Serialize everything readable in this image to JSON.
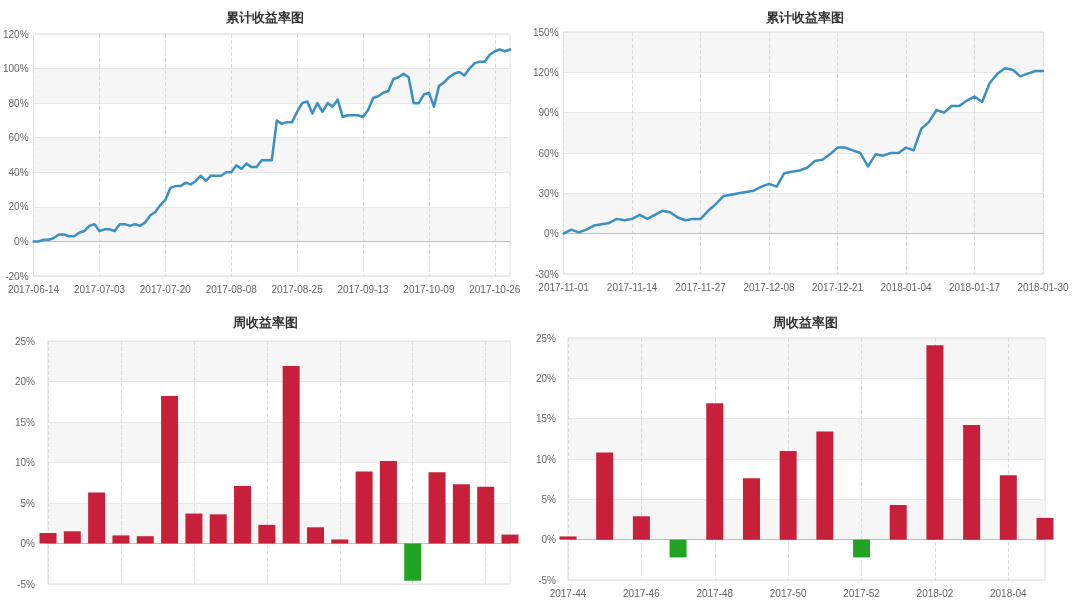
{
  "chart_data": [
    {
      "type": "line",
      "title": "累计收益率图",
      "categories": [
        "2017-06-14",
        null,
        null,
        null,
        null,
        null,
        null,
        null,
        null,
        null,
        null,
        null,
        null,
        "2017-07-03",
        null,
        null,
        null,
        null,
        null,
        null,
        null,
        null,
        null,
        null,
        null,
        null,
        "2017-07-20",
        null,
        null,
        null,
        null,
        null,
        null,
        null,
        null,
        null,
        null,
        null,
        null,
        "2017-08-08",
        null,
        null,
        null,
        null,
        null,
        null,
        null,
        null,
        null,
        null,
        null,
        null,
        "2017-08-25",
        null,
        null,
        null,
        null,
        null,
        null,
        null,
        null,
        null,
        null,
        null,
        null,
        "2017-09-13",
        null,
        null,
        null,
        null,
        null,
        null,
        null,
        null,
        null,
        null,
        null,
        null,
        "2017-10-09",
        null,
        null,
        null,
        null,
        null,
        null,
        null,
        null,
        null,
        null,
        null,
        null,
        "2017-10-26",
        null,
        null,
        null
      ],
      "values": [
        0,
        0,
        1,
        1,
        2,
        4,
        4,
        3,
        3,
        5,
        6,
        9,
        10,
        6,
        7,
        7,
        6,
        10,
        10,
        9,
        10,
        9,
        11,
        15,
        17,
        21,
        24,
        31,
        32,
        32,
        34,
        33,
        35,
        38,
        35,
        38,
        38,
        38,
        40,
        40,
        44,
        42,
        45,
        43,
        43,
        47,
        47,
        47,
        70,
        68,
        69,
        69,
        75,
        80,
        81,
        74,
        80,
        75,
        80,
        78,
        82,
        72,
        73,
        73,
        73,
        72,
        76,
        83,
        84,
        86,
        87,
        94,
        95,
        97,
        95,
        80,
        80,
        85,
        86,
        78,
        90,
        92,
        95,
        97,
        98,
        96,
        100,
        103,
        104,
        104,
        108,
        110,
        111,
        110,
        111
      ],
      "color": "#3a8fc4",
      "ylim": [
        -20,
        120
      ],
      "yticks": [
        {
          "value": -20,
          "label": "-20%"
        },
        {
          "value": 0,
          "label": "0%"
        },
        {
          "value": 20,
          "label": "20%"
        },
        {
          "value": 40,
          "label": "40%"
        },
        {
          "value": 60,
          "label": "60%"
        },
        {
          "value": 80,
          "label": "80%"
        },
        {
          "value": 100,
          "label": "100%"
        },
        {
          "value": 120,
          "label": "120%"
        }
      ],
      "grid": true,
      "marker": "none",
      "line_style": "solid"
    },
    {
      "type": "line",
      "title": "累计收益率图",
      "categories": [
        "2017-11-01",
        null,
        null,
        null,
        null,
        null,
        null,
        null,
        null,
        "2017-11-14",
        null,
        null,
        null,
        null,
        null,
        null,
        null,
        null,
        "2017-11-27",
        null,
        null,
        null,
        null,
        null,
        null,
        null,
        null,
        "2017-12-08",
        null,
        null,
        null,
        null,
        null,
        null,
        null,
        null,
        "2017-12-21",
        null,
        null,
        null,
        null,
        null,
        null,
        null,
        null,
        "2018-01-04",
        null,
        null,
        null,
        null,
        null,
        null,
        null,
        null,
        "2018-01-17",
        null,
        null,
        null,
        null,
        null,
        null,
        null,
        null,
        "2018-01-30"
      ],
      "values": [
        0,
        3,
        1,
        3,
        6,
        7,
        8,
        11,
        10,
        11,
        14,
        11,
        14,
        17,
        16,
        12,
        10,
        11,
        11,
        17,
        22,
        28,
        29,
        30,
        31,
        32,
        35,
        37,
        35,
        45,
        46,
        47,
        49,
        54,
        55,
        59,
        64,
        64,
        62,
        60,
        50,
        59,
        58,
        60,
        60,
        64,
        62,
        78,
        83,
        92,
        90,
        95,
        95,
        99,
        102,
        98,
        112,
        119,
        123,
        122,
        117,
        119,
        121,
        121
      ],
      "color": "#3a8fc4",
      "ylim": [
        -30,
        150
      ],
      "yticks": [
        {
          "value": -30,
          "label": "-30%"
        },
        {
          "value": 0,
          "label": "0%"
        },
        {
          "value": 30,
          "label": "30%"
        },
        {
          "value": 60,
          "label": "60%"
        },
        {
          "value": 90,
          "label": "90%"
        },
        {
          "value": 120,
          "label": "120%"
        },
        {
          "value": 150,
          "label": "150%"
        }
      ],
      "grid": true,
      "marker": "none",
      "line_style": "solid"
    },
    {
      "type": "bar",
      "title": "周收益率图",
      "categories": [
        null,
        null,
        null,
        null,
        null,
        null,
        null,
        null,
        null,
        null,
        null,
        null,
        null,
        null,
        null,
        null,
        null,
        null,
        null,
        null
      ],
      "values": [
        1.3,
        1.5,
        6.3,
        1.0,
        0.9,
        18.2,
        3.7,
        3.6,
        7.1,
        2.3,
        21.9,
        2.0,
        0.5,
        8.9,
        10.2,
        -4.6,
        8.8,
        7.3,
        7.0,
        1.1
      ],
      "colors": [
        "#c8203a",
        "#c8203a",
        "#c8203a",
        "#c8203a",
        "#c8203a",
        "#c8203a",
        "#c8203a",
        "#c8203a",
        "#c8203a",
        "#c8203a",
        "#c8203a",
        "#c8203a",
        "#c8203a",
        "#c8203a",
        "#c8203a",
        "#23a323",
        "#c8203a",
        "#c8203a",
        "#c8203a",
        "#c8203a"
      ],
      "ylim": [
        -5,
        25
      ],
      "yticks": [
        {
          "value": -5,
          "label": "-5%"
        },
        {
          "value": 0,
          "label": "0%"
        },
        {
          "value": 5,
          "label": "5%"
        },
        {
          "value": 10,
          "label": "10%"
        },
        {
          "value": 15,
          "label": "15%"
        },
        {
          "value": 20,
          "label": "20%"
        },
        {
          "value": 25,
          "label": "25%"
        }
      ],
      "grid": true,
      "tick_labels": "y"
    },
    {
      "type": "bar",
      "title": "周收益率图",
      "categories": [
        "2017-44",
        null,
        "2017-46",
        null,
        "2017-48",
        null,
        "2017-50",
        null,
        "2017-52",
        null,
        "2018-02",
        null,
        "2018-04",
        null
      ],
      "values": [
        0.4,
        10.8,
        2.9,
        -2.2,
        16.9,
        7.6,
        11.0,
        13.4,
        -2.2,
        4.3,
        24.1,
        14.2,
        8.0,
        2.7
      ],
      "colors": [
        "#c8203a",
        "#c8203a",
        "#c8203a",
        "#23a323",
        "#c8203a",
        "#c8203a",
        "#c8203a",
        "#c8203a",
        "#23a323",
        "#c8203a",
        "#c8203a",
        "#c8203a",
        "#c8203a",
        "#c8203a"
      ],
      "ylim": [
        -5,
        25
      ],
      "yticks": [
        {
          "value": -5,
          "label": "-5%"
        },
        {
          "value": 0,
          "label": "0%"
        },
        {
          "value": 5,
          "label": "5%"
        },
        {
          "value": 10,
          "label": "10%"
        },
        {
          "value": 15,
          "label": "15%"
        },
        {
          "value": 20,
          "label": "20%"
        },
        {
          "value": 25,
          "label": "25%"
        }
      ],
      "grid": true
    }
  ]
}
